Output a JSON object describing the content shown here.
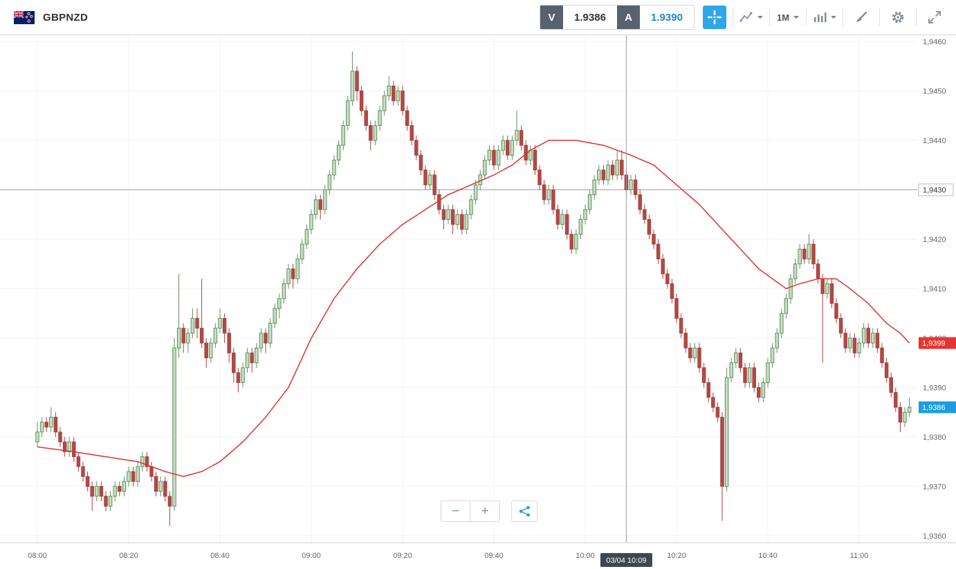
{
  "topbar": {
    "symbol": "GBPNZD",
    "sell_label": "V",
    "sell_price": "1.9386",
    "buy_label": "A",
    "buy_price": "1.9390",
    "timeframe": "1M"
  },
  "controls": {
    "zoom_out_label": "−",
    "zoom_in_label": "+"
  },
  "colors": {
    "accent_blue": "#2ea6e9",
    "buy_text": "#1a86c8",
    "up_fill": "#c6ddc4",
    "up_stroke": "#5d8f5b",
    "down_fill": "#b04a46",
    "down_stroke": "#a8423f",
    "ma_line": "#e0312e",
    "ask_badge": "#e63430",
    "last_badge": "#1b9de2",
    "crosshair_badge": "#3d4752"
  },
  "crosshair": {
    "minute": 129,
    "time_label": "03/04 10:09"
  },
  "level_line": {
    "value": 1.943,
    "label": "1,9430"
  },
  "price_badges": [
    {
      "name": "ma-value-badge",
      "value": 1.9399,
      "label": "1,9399",
      "color": "#e63430"
    },
    {
      "name": "last-price-badge",
      "value": 1.9386,
      "label": "1,9386",
      "color": "#1b9de2"
    }
  ],
  "chart_data": {
    "type": "candlestick",
    "symbol": "GBPNZD",
    "interval": "1M",
    "start_time": "08:00",
    "interval_min": 1,
    "price_min": 1.936,
    "price_max": 1.946,
    "x_ticks": [
      "08:00",
      "08:20",
      "08:40",
      "09:00",
      "09:20",
      "09:40",
      "10:00",
      "10:20",
      "10:40",
      "11:00"
    ],
    "y_ticks": [
      {
        "v": 1.946,
        "label": "1,9460"
      },
      {
        "v": 1.945,
        "label": "1,9450"
      },
      {
        "v": 1.944,
        "label": "1,9440"
      },
      {
        "v": 1.943,
        "label": "1,9430"
      },
      {
        "v": 1.942,
        "label": "1,9420"
      },
      {
        "v": 1.941,
        "label": "1,9410"
      },
      {
        "v": 1.94,
        "label": "1,9400"
      },
      {
        "v": 1.939,
        "label": "1,9390"
      },
      {
        "v": 1.938,
        "label": "1,9380"
      },
      {
        "v": 1.937,
        "label": "1,9370"
      },
      {
        "v": 1.936,
        "label": "1,9360"
      }
    ],
    "candles": [
      [
        1.9379,
        1.9383,
        1.9378,
        1.9381
      ],
      [
        1.9381,
        1.9384,
        1.938,
        1.9383
      ],
      [
        1.9383,
        1.9384,
        1.9381,
        1.9382
      ],
      [
        1.9382,
        1.9386,
        1.9381,
        1.9384
      ],
      [
        1.9384,
        1.9385,
        1.938,
        1.9381
      ],
      [
        1.9381,
        1.9382,
        1.9378,
        1.9379
      ],
      [
        1.9379,
        1.938,
        1.9376,
        1.9377
      ],
      [
        1.9377,
        1.938,
        1.9376,
        1.9379
      ],
      [
        1.9379,
        1.938,
        1.9375,
        1.9376
      ],
      [
        1.9376,
        1.9377,
        1.9373,
        1.9374
      ],
      [
        1.9374,
        1.9375,
        1.9371,
        1.9372
      ],
      [
        1.9372,
        1.9373,
        1.9369,
        1.937
      ],
      [
        1.937,
        1.9371,
        1.9365,
        1.9368
      ],
      [
        1.9368,
        1.9371,
        1.9367,
        1.937
      ],
      [
        1.937,
        1.9371,
        1.9367,
        1.9368
      ],
      [
        1.9368,
        1.9369,
        1.9365,
        1.9366
      ],
      [
        1.9366,
        1.9369,
        1.9365,
        1.9368
      ],
      [
        1.9368,
        1.9371,
        1.9367,
        1.937
      ],
      [
        1.937,
        1.9371,
        1.9368,
        1.9369
      ],
      [
        1.9369,
        1.9372,
        1.9368,
        1.9371
      ],
      [
        1.9371,
        1.9374,
        1.937,
        1.9373
      ],
      [
        1.9373,
        1.9374,
        1.937,
        1.9371
      ],
      [
        1.9371,
        1.9375,
        1.937,
        1.9374
      ],
      [
        1.9374,
        1.9377,
        1.9373,
        1.9376
      ],
      [
        1.9376,
        1.9377,
        1.9373,
        1.9374
      ],
      [
        1.9374,
        1.9375,
        1.9371,
        1.9372
      ],
      [
        1.9372,
        1.9373,
        1.9368,
        1.9369
      ],
      [
        1.9369,
        1.9372,
        1.9368,
        1.9371
      ],
      [
        1.9371,
        1.9372,
        1.9367,
        1.9368
      ],
      [
        1.9368,
        1.9369,
        1.9362,
        1.9366
      ],
      [
        1.9366,
        1.94,
        1.9365,
        1.9398
      ],
      [
        1.9398,
        1.9413,
        1.9396,
        1.9402
      ],
      [
        1.9402,
        1.9403,
        1.9397,
        1.9399
      ],
      [
        1.9399,
        1.9402,
        1.9397,
        1.9401
      ],
      [
        1.9401,
        1.9406,
        1.94,
        1.9404
      ],
      [
        1.9404,
        1.9406,
        1.94,
        1.9402
      ],
      [
        1.9402,
        1.9412,
        1.9398,
        1.9399
      ],
      [
        1.9399,
        1.94,
        1.9394,
        1.9396
      ],
      [
        1.9396,
        1.94,
        1.9395,
        1.9399
      ],
      [
        1.9399,
        1.9403,
        1.9398,
        1.9402
      ],
      [
        1.9402,
        1.9406,
        1.9401,
        1.9404
      ],
      [
        1.9404,
        1.9405,
        1.9399,
        1.9401
      ],
      [
        1.9401,
        1.9402,
        1.9395,
        1.9397
      ],
      [
        1.9397,
        1.9398,
        1.9391,
        1.9393
      ],
      [
        1.9393,
        1.9394,
        1.9389,
        1.9391
      ],
      [
        1.9391,
        1.9395,
        1.939,
        1.9394
      ],
      [
        1.9394,
        1.9398,
        1.9393,
        1.9397
      ],
      [
        1.9397,
        1.9398,
        1.9393,
        1.9395
      ],
      [
        1.9395,
        1.9399,
        1.9394,
        1.9398
      ],
      [
        1.9398,
        1.9402,
        1.9397,
        1.9401
      ],
      [
        1.9401,
        1.9402,
        1.9397,
        1.9399
      ],
      [
        1.9399,
        1.9404,
        1.9398,
        1.9403
      ],
      [
        1.9403,
        1.9407,
        1.9402,
        1.9406
      ],
      [
        1.9406,
        1.9409,
        1.9404,
        1.9408
      ],
      [
        1.9408,
        1.9412,
        1.9407,
        1.9411
      ],
      [
        1.9411,
        1.9415,
        1.941,
        1.9414
      ],
      [
        1.9414,
        1.9415,
        1.941,
        1.9412
      ],
      [
        1.9412,
        1.9417,
        1.9411,
        1.9416
      ],
      [
        1.9416,
        1.942,
        1.9415,
        1.9419
      ],
      [
        1.9419,
        1.9423,
        1.9418,
        1.9422
      ],
      [
        1.9422,
        1.9426,
        1.9421,
        1.9425
      ],
      [
        1.9425,
        1.9429,
        1.9424,
        1.9428
      ],
      [
        1.9428,
        1.9429,
        1.9424,
        1.9426
      ],
      [
        1.9426,
        1.9431,
        1.9425,
        1.943
      ],
      [
        1.943,
        1.9434,
        1.9429,
        1.9433
      ],
      [
        1.9433,
        1.9437,
        1.9432,
        1.9436
      ],
      [
        1.9436,
        1.944,
        1.9435,
        1.9439
      ],
      [
        1.9439,
        1.9444,
        1.9438,
        1.9443
      ],
      [
        1.9443,
        1.9449,
        1.9442,
        1.9448
      ],
      [
        1.9448,
        1.9458,
        1.9447,
        1.9454
      ],
      [
        1.9454,
        1.9455,
        1.9448,
        1.945
      ],
      [
        1.945,
        1.9451,
        1.9445,
        1.9446
      ],
      [
        1.9446,
        1.9447,
        1.9442,
        1.9443
      ],
      [
        1.9443,
        1.9444,
        1.9438,
        1.944
      ],
      [
        1.944,
        1.9444,
        1.9439,
        1.9443
      ],
      [
        1.9443,
        1.9447,
        1.9442,
        1.9446
      ],
      [
        1.9446,
        1.945,
        1.9445,
        1.9449
      ],
      [
        1.9449,
        1.9453,
        1.9448,
        1.9451
      ],
      [
        1.9451,
        1.9452,
        1.9447,
        1.9448
      ],
      [
        1.9448,
        1.9451,
        1.9447,
        1.945
      ],
      [
        1.945,
        1.9451,
        1.9445,
        1.9446
      ],
      [
        1.9446,
        1.9447,
        1.9442,
        1.9443
      ],
      [
        1.9443,
        1.9444,
        1.9439,
        1.944
      ],
      [
        1.944,
        1.9441,
        1.9436,
        1.9437
      ],
      [
        1.9437,
        1.9438,
        1.9433,
        1.9434
      ],
      [
        1.9434,
        1.9435,
        1.943,
        1.9431
      ],
      [
        1.9431,
        1.9434,
        1.943,
        1.9433
      ],
      [
        1.9433,
        1.9434,
        1.9428,
        1.9429
      ],
      [
        1.9429,
        1.943,
        1.9425,
        1.9426
      ],
      [
        1.9426,
        1.9427,
        1.9422,
        1.9424
      ],
      [
        1.9424,
        1.9427,
        1.9423,
        1.9426
      ],
      [
        1.9426,
        1.9427,
        1.9421,
        1.9423
      ],
      [
        1.9423,
        1.9426,
        1.9422,
        1.9425
      ],
      [
        1.9425,
        1.9426,
        1.9421,
        1.9422
      ],
      [
        1.9422,
        1.9426,
        1.9421,
        1.9425
      ],
      [
        1.9425,
        1.9429,
        1.9424,
        1.9428
      ],
      [
        1.9428,
        1.9432,
        1.9427,
        1.9431
      ],
      [
        1.9431,
        1.9434,
        1.943,
        1.9433
      ],
      [
        1.9433,
        1.9437,
        1.9432,
        1.9436
      ],
      [
        1.9436,
        1.9439,
        1.9435,
        1.9438
      ],
      [
        1.9438,
        1.9439,
        1.9434,
        1.9435
      ],
      [
        1.9435,
        1.9439,
        1.9434,
        1.9438
      ],
      [
        1.9438,
        1.9441,
        1.9437,
        1.944
      ],
      [
        1.944,
        1.9441,
        1.9436,
        1.9437
      ],
      [
        1.9437,
        1.9441,
        1.9436,
        1.944
      ],
      [
        1.944,
        1.9446,
        1.9439,
        1.9442
      ],
      [
        1.9442,
        1.9443,
        1.9438,
        1.9439
      ],
      [
        1.9439,
        1.944,
        1.9435,
        1.9436
      ],
      [
        1.9436,
        1.9439,
        1.9435,
        1.9438
      ],
      [
        1.9438,
        1.9439,
        1.9433,
        1.9434
      ],
      [
        1.9434,
        1.9435,
        1.943,
        1.9431
      ],
      [
        1.9431,
        1.9432,
        1.9427,
        1.9428
      ],
      [
        1.9428,
        1.9431,
        1.9427,
        1.943
      ],
      [
        1.943,
        1.9431,
        1.9425,
        1.9426
      ],
      [
        1.9426,
        1.9427,
        1.9422,
        1.9423
      ],
      [
        1.9423,
        1.9426,
        1.9422,
        1.9425
      ],
      [
        1.9425,
        1.9426,
        1.942,
        1.9421
      ],
      [
        1.9421,
        1.9422,
        1.9417,
        1.9418
      ],
      [
        1.9418,
        1.9422,
        1.9417,
        1.9421
      ],
      [
        1.9421,
        1.9425,
        1.942,
        1.9424
      ],
      [
        1.9424,
        1.9427,
        1.9423,
        1.9426
      ],
      [
        1.9426,
        1.943,
        1.9425,
        1.9429
      ],
      [
        1.9429,
        1.9433,
        1.9428,
        1.9432
      ],
      [
        1.9432,
        1.9435,
        1.9431,
        1.9434
      ],
      [
        1.9434,
        1.9435,
        1.9431,
        1.9432
      ],
      [
        1.9432,
        1.9436,
        1.9431,
        1.9435
      ],
      [
        1.9435,
        1.9436,
        1.9432,
        1.9433
      ],
      [
        1.9433,
        1.9438,
        1.9432,
        1.9436
      ],
      [
        1.9436,
        1.9438,
        1.9432,
        1.9433
      ],
      [
        1.9433,
        1.9434,
        1.9429,
        1.943
      ],
      [
        1.943,
        1.9433,
        1.9429,
        1.9432
      ],
      [
        1.9432,
        1.9433,
        1.9428,
        1.9429
      ],
      [
        1.9429,
        1.943,
        1.9425,
        1.9426
      ],
      [
        1.9426,
        1.9427,
        1.9423,
        1.9424
      ],
      [
        1.9424,
        1.9425,
        1.942,
        1.9421
      ],
      [
        1.9421,
        1.9422,
        1.9418,
        1.9419
      ],
      [
        1.9419,
        1.942,
        1.9415,
        1.9416
      ],
      [
        1.9416,
        1.9417,
        1.9412,
        1.9413
      ],
      [
        1.9413,
        1.9414,
        1.941,
        1.9411
      ],
      [
        1.9411,
        1.9412,
        1.9407,
        1.9408
      ],
      [
        1.9408,
        1.9409,
        1.9403,
        1.9404
      ],
      [
        1.9404,
        1.9405,
        1.94,
        1.9401
      ],
      [
        1.9401,
        1.9402,
        1.9397,
        1.9398
      ],
      [
        1.9398,
        1.9399,
        1.9395,
        1.9396
      ],
      [
        1.9396,
        1.9399,
        1.9395,
        1.9398
      ],
      [
        1.9398,
        1.9399,
        1.9393,
        1.9394
      ],
      [
        1.9394,
        1.9395,
        1.939,
        1.9391
      ],
      [
        1.9391,
        1.9392,
        1.9387,
        1.9388
      ],
      [
        1.9388,
        1.9389,
        1.9385,
        1.9386
      ],
      [
        1.9386,
        1.9387,
        1.9383,
        1.9384
      ],
      [
        1.9384,
        1.9385,
        1.9363,
        1.937
      ],
      [
        1.937,
        1.9394,
        1.9369,
        1.9392
      ],
      [
        1.9392,
        1.9396,
        1.9391,
        1.9395
      ],
      [
        1.9395,
        1.9398,
        1.9394,
        1.9397
      ],
      [
        1.9397,
        1.9398,
        1.9393,
        1.9394
      ],
      [
        1.9394,
        1.9395,
        1.939,
        1.9391
      ],
      [
        1.9391,
        1.9395,
        1.939,
        1.9394
      ],
      [
        1.9394,
        1.9395,
        1.9389,
        1.939
      ],
      [
        1.939,
        1.9391,
        1.9387,
        1.9388
      ],
      [
        1.9388,
        1.9392,
        1.9387,
        1.9391
      ],
      [
        1.9391,
        1.9396,
        1.939,
        1.9395
      ],
      [
        1.9395,
        1.9399,
        1.9394,
        1.9398
      ],
      [
        1.9398,
        1.9402,
        1.9397,
        1.9401
      ],
      [
        1.9401,
        1.9406,
        1.94,
        1.9405
      ],
      [
        1.9405,
        1.9409,
        1.9404,
        1.9408
      ],
      [
        1.9408,
        1.9413,
        1.9407,
        1.9412
      ],
      [
        1.9412,
        1.9416,
        1.9411,
        1.9415
      ],
      [
        1.9415,
        1.9419,
        1.9414,
        1.9418
      ],
      [
        1.9418,
        1.9419,
        1.9415,
        1.9416
      ],
      [
        1.9416,
        1.9421,
        1.9415,
        1.9419
      ],
      [
        1.9419,
        1.942,
        1.9414,
        1.9415
      ],
      [
        1.9415,
        1.9416,
        1.9411,
        1.9412
      ],
      [
        1.9412,
        1.9413,
        1.9395,
        1.9409
      ],
      [
        1.9409,
        1.9412,
        1.9408,
        1.9411
      ],
      [
        1.9411,
        1.9412,
        1.9406,
        1.9407
      ],
      [
        1.9407,
        1.9408,
        1.9403,
        1.9404
      ],
      [
        1.9404,
        1.9405,
        1.94,
        1.9401
      ],
      [
        1.9401,
        1.9402,
        1.9397,
        1.9398
      ],
      [
        1.9398,
        1.9401,
        1.9397,
        1.94
      ],
      [
        1.94,
        1.9401,
        1.9396,
        1.9397
      ],
      [
        1.9397,
        1.94,
        1.9396,
        1.9399
      ],
      [
        1.9399,
        1.9403,
        1.9398,
        1.9402
      ],
      [
        1.9402,
        1.9403,
        1.9398,
        1.9399
      ],
      [
        1.9399,
        1.9402,
        1.9398,
        1.9401
      ],
      [
        1.9401,
        1.9402,
        1.9397,
        1.9398
      ],
      [
        1.9398,
        1.9399,
        1.9394,
        1.9395
      ],
      [
        1.9395,
        1.9396,
        1.9391,
        1.9392
      ],
      [
        1.9392,
        1.9393,
        1.9388,
        1.9389
      ],
      [
        1.9389,
        1.939,
        1.9385,
        1.9386
      ],
      [
        1.9386,
        1.9387,
        1.9381,
        1.9383
      ],
      [
        1.9383,
        1.9386,
        1.9382,
        1.9385
      ],
      [
        1.9385,
        1.9388,
        1.9384,
        1.9386
      ]
    ],
    "ma_line": {
      "color": "#e0312e",
      "anchors": [
        [
          0,
          1.9378
        ],
        [
          8,
          1.9377
        ],
        [
          15,
          1.9376
        ],
        [
          22,
          1.9375
        ],
        [
          28,
          1.9373
        ],
        [
          32,
          1.9372
        ],
        [
          36,
          1.9373
        ],
        [
          40,
          1.9375
        ],
        [
          45,
          1.9379
        ],
        [
          50,
          1.9384
        ],
        [
          55,
          1.939
        ],
        [
          60,
          1.94
        ],
        [
          65,
          1.9408
        ],
        [
          70,
          1.9414
        ],
        [
          75,
          1.9419
        ],
        [
          80,
          1.9423
        ],
        [
          85,
          1.9426
        ],
        [
          90,
          1.9429
        ],
        [
          95,
          1.9431
        ],
        [
          100,
          1.9433
        ],
        [
          104,
          1.9435
        ],
        [
          108,
          1.9438
        ],
        [
          112,
          1.944
        ],
        [
          118,
          1.944
        ],
        [
          124,
          1.9439
        ],
        [
          130,
          1.9437
        ],
        [
          135,
          1.9435
        ],
        [
          140,
          1.9431
        ],
        [
          145,
          1.9427
        ],
        [
          150,
          1.9422
        ],
        [
          154,
          1.9418
        ],
        [
          158,
          1.9414
        ],
        [
          161,
          1.9412
        ],
        [
          164,
          1.941
        ],
        [
          167,
          1.9411
        ],
        [
          171,
          1.9412
        ],
        [
          175,
          1.9412
        ],
        [
          178,
          1.941
        ],
        [
          182,
          1.9407
        ],
        [
          186,
          1.9403
        ],
        [
          189,
          1.9401
        ],
        [
          191,
          1.9399
        ]
      ]
    }
  }
}
